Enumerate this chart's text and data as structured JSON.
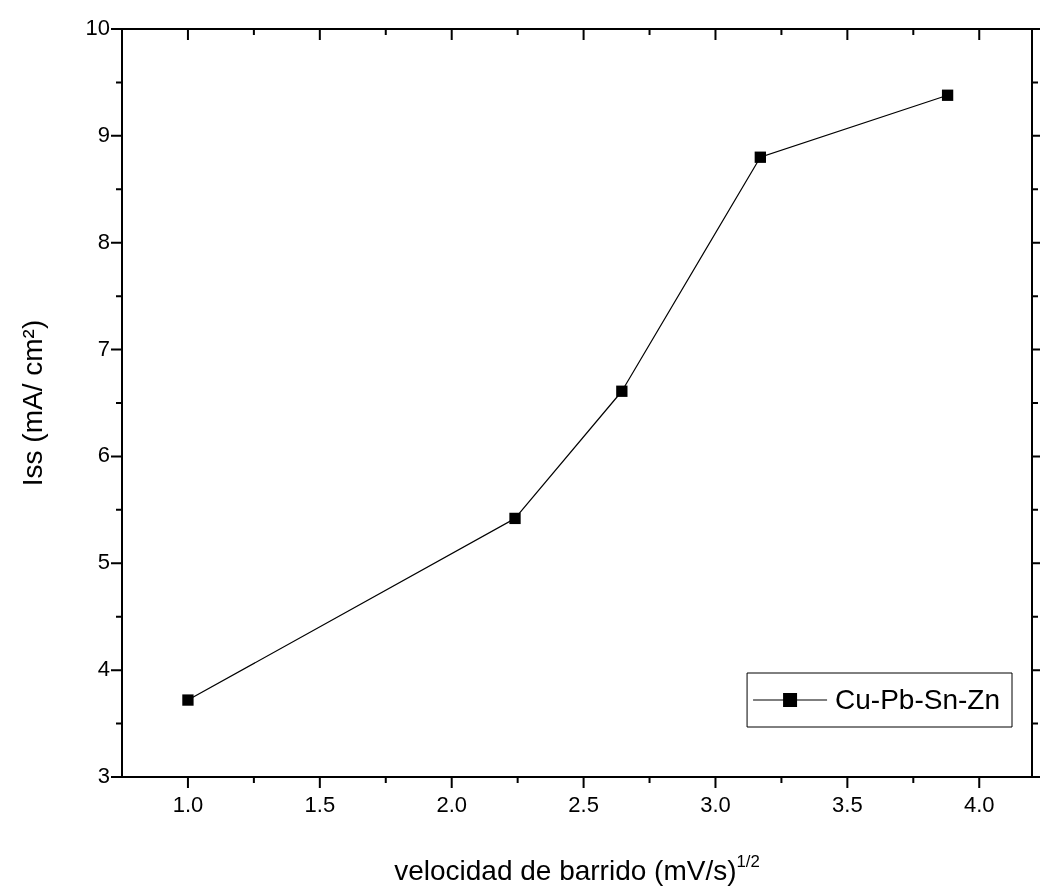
{
  "chart_data": {
    "type": "line",
    "xlabel": "velocidad de barrido (mV/s)$^{1/2}$",
    "ylabel": "Iss (mA/ cm²)",
    "x": [
      1.0,
      2.24,
      2.645,
      3.17,
      3.88
    ],
    "series": [
      {
        "name": "Cu-Pb-Sn-Zn",
        "color": "#000000",
        "values": [
          3.72,
          5.42,
          6.61,
          8.8,
          9.38
        ]
      }
    ],
    "xlim": [
      0.75,
      4.2
    ],
    "xticks": [
      {
        "value": 1,
        "label": "1.0"
      },
      {
        "value": 1.25,
        "label": null
      },
      {
        "value": 1.5,
        "label": "1.5"
      },
      {
        "value": 1.75,
        "label": null
      },
      {
        "value": 2,
        "label": "2.0"
      },
      {
        "value": 2.25,
        "label": null
      },
      {
        "value": 2.5,
        "label": "2.5"
      },
      {
        "value": 2.75,
        "label": null
      },
      {
        "value": 3,
        "label": "3.0"
      },
      {
        "value": 3.25,
        "label": null
      },
      {
        "value": 3.5,
        "label": "3.5"
      },
      {
        "value": 3.75,
        "label": null
      },
      {
        "value": 4,
        "label": "4.0"
      }
    ],
    "ylim": [
      3,
      10
    ],
    "yticks": [
      3,
      {
        "value": 3.5,
        "label": null
      },
      4,
      {
        "value": 4.5,
        "label": null
      },
      5,
      {
        "value": 5.5,
        "label": null
      },
      6,
      {
        "value": 6.5,
        "label": null
      },
      7,
      {
        "value": 7.5,
        "label": null
      },
      8,
      {
        "value": 8.5,
        "label": null
      },
      9,
      {
        "value": 9.5,
        "label": null
      },
      10
    ],
    "marker": "square",
    "line_style": "solid",
    "legend": "bottom right"
  }
}
